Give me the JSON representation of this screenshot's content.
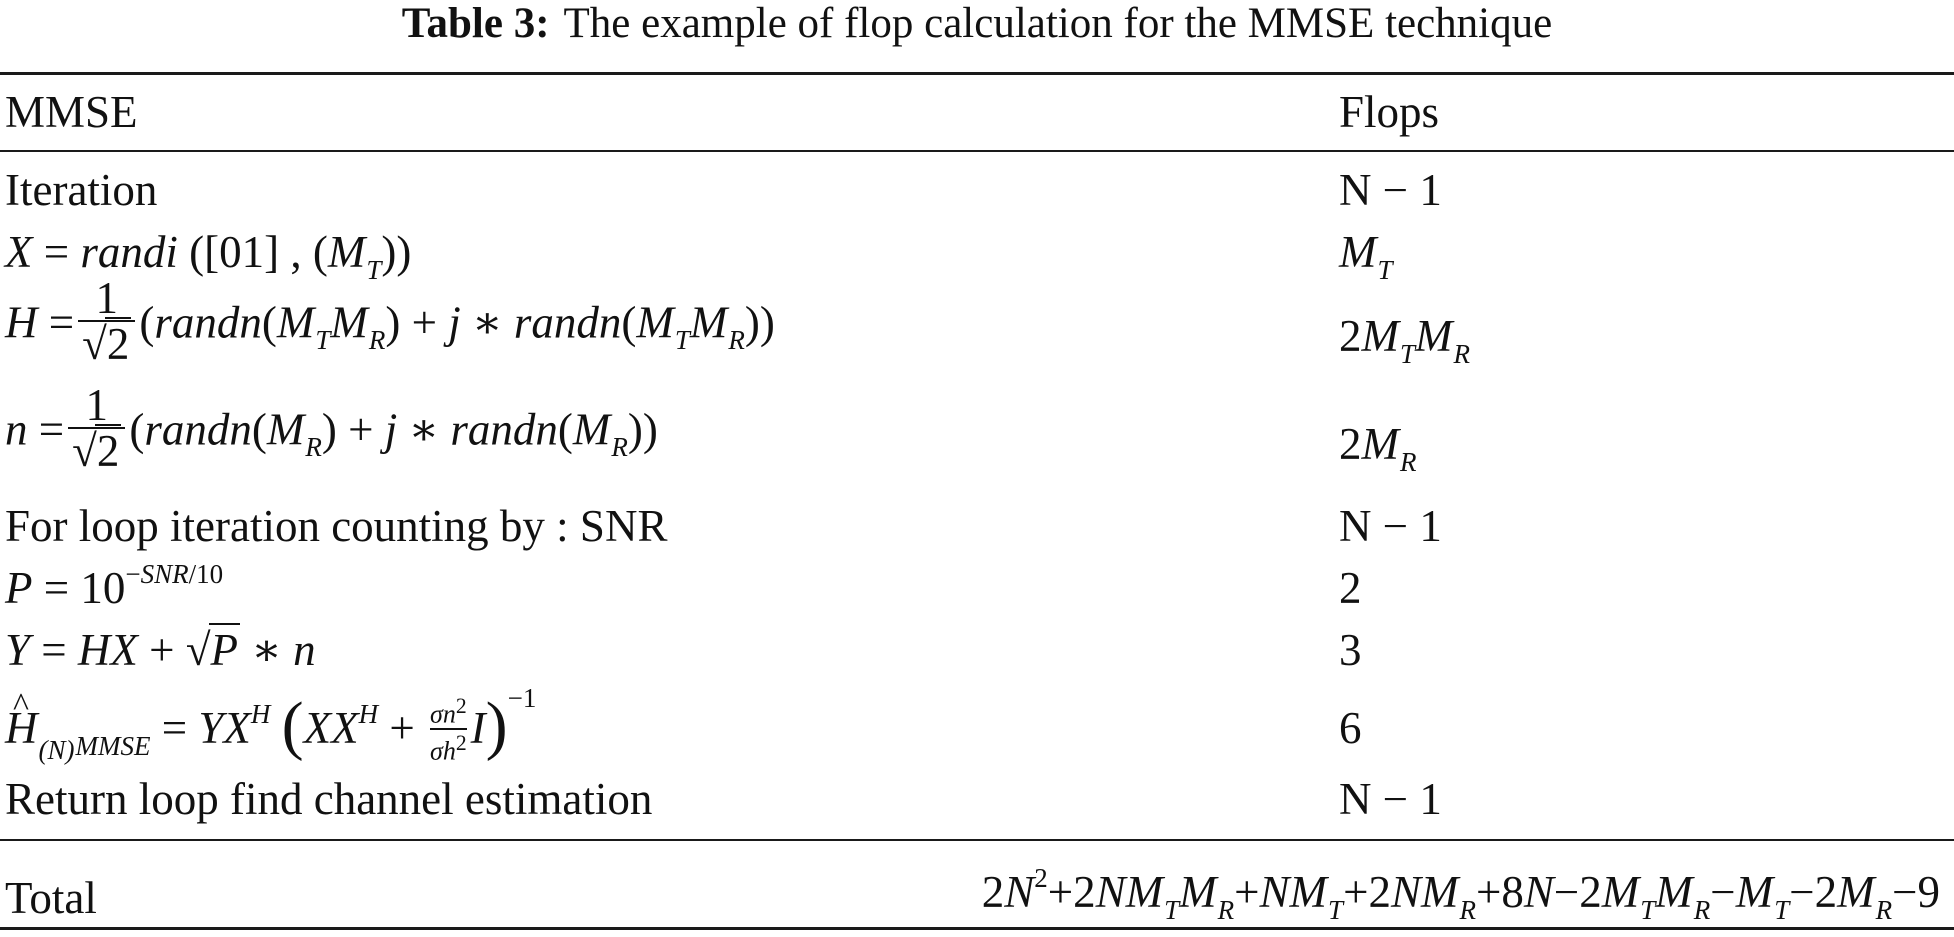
{
  "caption": {
    "label": "Table 3:",
    "text": "The example of flop calculation for the MMSE technique"
  },
  "headers": {
    "col1": "MMSE",
    "col2": "Flops"
  },
  "rows": [
    {
      "label": "Iteration",
      "flops": "N − 1"
    },
    {
      "label": "X = randi ([01], (M_T))",
      "flops": "M_T"
    },
    {
      "label": "H = 1/√2 (randn(M_T M_R) + j * randn(M_T M_R))",
      "flops": "2M_T M_R"
    },
    {
      "label": "n = 1/√2 (randn(M_R) + j * randn(M_R))",
      "flops": "2M_R"
    },
    {
      "label": "For loop iteration counting by : SNR",
      "flops": "N − 1"
    },
    {
      "label": "P = 10^(−SNR/10)",
      "flops": "2"
    },
    {
      "label": "Y = HX + √P * n",
      "flops": "3"
    },
    {
      "label": "Ĥ_(N) MMSE = Y X^H (X X^H + σn²/σh² I)^−1",
      "flops": "6"
    },
    {
      "label": "Return loop find channel estimation",
      "flops": "N − 1"
    }
  ],
  "total": {
    "label": "Total",
    "value": "2N² + 2NM_T M_R + NM_T + 2NM_R + 8N − 2M_T M_R − M_T − 2M_R − 9"
  }
}
